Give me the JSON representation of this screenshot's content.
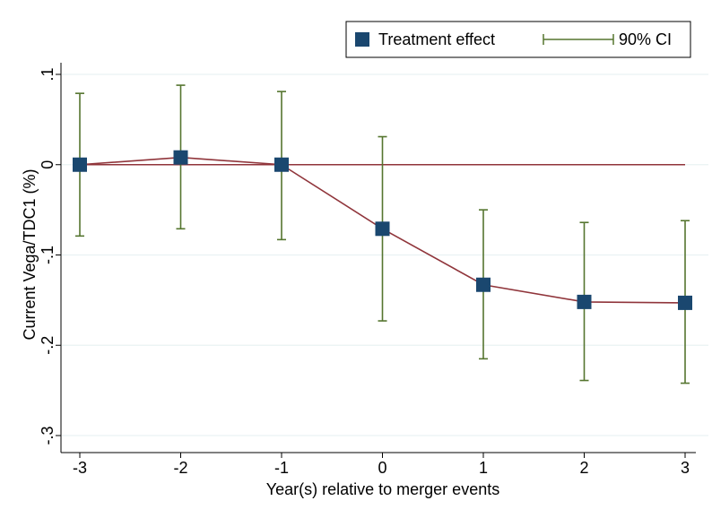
{
  "chart_data": {
    "type": "scatter",
    "xlabel": "Year(s) relative to merger events",
    "ylabel": "Current Vega/TDC1 (%)",
    "x": [
      -3,
      -2,
      -1,
      0,
      1,
      2,
      3
    ],
    "xlim": [
      -3,
      3
    ],
    "ylim": [
      -0.3,
      0.1
    ],
    "xticks": [
      -3,
      -2,
      -1,
      0,
      1,
      2,
      3
    ],
    "yticks": [
      0.1,
      0,
      -0.1,
      -0.2,
      -0.3
    ],
    "xtick_labels": [
      "-3",
      "-2",
      "-1",
      "0",
      "1",
      "2",
      "3"
    ],
    "ytick_labels": [
      ".1",
      "0",
      "-.1",
      "-.2",
      "-.3"
    ],
    "grid": true,
    "legend_position": "top-right",
    "reference_line_y": 0,
    "series": [
      {
        "name": "Treatment effect",
        "marker": "square",
        "connected": true,
        "values": [
          0.0,
          0.008,
          0.0,
          -0.071,
          -0.133,
          -0.152,
          -0.153
        ],
        "ci_lower": [
          -0.079,
          -0.071,
          -0.083,
          -0.173,
          -0.215,
          -0.239,
          -0.242
        ],
        "ci_upper": [
          0.079,
          0.088,
          0.081,
          0.031,
          -0.05,
          -0.064,
          -0.062
        ]
      }
    ],
    "ci_label": "90% CI"
  },
  "colors": {
    "marker": "#1a476f",
    "connector": "#90353b",
    "ci": "#55752f",
    "axis": "#000000",
    "grid": "#eaf2f3"
  }
}
